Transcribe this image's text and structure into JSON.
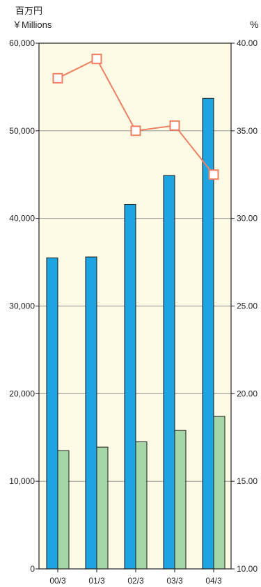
{
  "chart_data": {
    "type": "bar",
    "categories": [
      "00/3",
      "01/3",
      "02/3",
      "03/3",
      "04/3"
    ],
    "left_unit_line1": "百万円",
    "left_unit_line2": "￥Millions",
    "right_unit": "%",
    "y_left": {
      "min": 0,
      "max": 60000,
      "ticks": [
        "0",
        "10,000",
        "20,000",
        "30,000",
        "40,000",
        "50,000",
        "60,000"
      ]
    },
    "y_right": {
      "min": 10,
      "max": 40,
      "ticks": [
        "10.00",
        "15.00",
        "20.00",
        "25.00",
        "30.00",
        "35.00",
        "40.00"
      ]
    },
    "series": [
      {
        "kind": "bar",
        "axis": "left",
        "color": "#1ea4e1",
        "values": [
          35500,
          35600,
          41600,
          44900,
          53700
        ]
      },
      {
        "kind": "bar",
        "axis": "left",
        "color": "#a6d5a8",
        "values": [
          13500,
          13900,
          14500,
          15800,
          17400
        ]
      },
      {
        "kind": "line",
        "axis": "right",
        "color": "#f07f62",
        "values": [
          38.0,
          39.1,
          35.0,
          35.3,
          32.5
        ]
      }
    ],
    "plot_background": "#fdfbe6",
    "grid": true
  }
}
